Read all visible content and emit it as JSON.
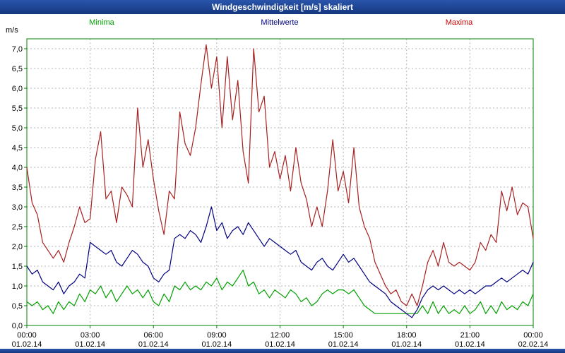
{
  "title": "Windgeschwindigkeit [m/s] skaliert",
  "legend": {
    "minima": "Minima",
    "mittelwerte": "Mittelwerte",
    "maxima": "Maxima"
  },
  "colors": {
    "title_bar": "#1c3e8f",
    "frame": "#008000",
    "grid": "#b4b4b4",
    "minima": "#00a000",
    "mittelwerte": "#000080",
    "maxima": "#a82020"
  },
  "chart_data": {
    "type": "line",
    "title": "Windgeschwindigkeit [m/s] skaliert",
    "xlabel": "",
    "ylabel": "m/s",
    "ylim": [
      0,
      7.25
    ],
    "y_tick_step": 0.5,
    "y_tick_labels": [
      "0,0",
      "0,5",
      "1,0",
      "1,5",
      "2,0",
      "2,5",
      "3,0",
      "3,5",
      "4,0",
      "4,5",
      "5,0",
      "5,5",
      "6,0",
      "6,5",
      "7,0"
    ],
    "x_start_hours": 0,
    "x_step_hours": 0.25,
    "x_ticks": [
      {
        "t": 0,
        "time": "00:00",
        "date": "01.02.14"
      },
      {
        "t": 3,
        "time": "03:00",
        "date": "01.02.14"
      },
      {
        "t": 6,
        "time": "06:00",
        "date": "01.02.14"
      },
      {
        "t": 9,
        "time": "09:00",
        "date": "01.02.14"
      },
      {
        "t": 12,
        "time": "12:00",
        "date": "01.02.14"
      },
      {
        "t": 15,
        "time": "15:00",
        "date": "01.02.14"
      },
      {
        "t": 18,
        "time": "18:00",
        "date": "01.02.14"
      },
      {
        "t": 21,
        "time": "21:00",
        "date": "01.02.14"
      },
      {
        "t": 24,
        "time": "00:00",
        "date": "02.02.14"
      }
    ],
    "grid": true,
    "legend_position": "top",
    "series": [
      {
        "name": "Minima",
        "color": "#00a000",
        "values": [
          0.6,
          0.5,
          0.6,
          0.4,
          0.5,
          0.3,
          0.6,
          0.4,
          0.6,
          0.5,
          0.8,
          0.6,
          0.9,
          0.8,
          1.0,
          0.7,
          0.9,
          0.6,
          0.8,
          1.0,
          0.8,
          0.9,
          0.7,
          0.9,
          0.6,
          0.5,
          0.8,
          0.6,
          1.0,
          0.9,
          1.1,
          0.9,
          1.0,
          0.9,
          1.1,
          1.0,
          1.2,
          0.9,
          1.1,
          1.0,
          1.2,
          1.4,
          1.0,
          1.1,
          0.8,
          0.9,
          0.7,
          0.9,
          0.8,
          0.7,
          0.9,
          0.8,
          0.6,
          0.7,
          0.5,
          0.6,
          0.8,
          0.9,
          0.8,
          0.9,
          0.9,
          0.8,
          0.9,
          0.7,
          0.5,
          0.4,
          0.3,
          0.3,
          0.3,
          0.3,
          0.3,
          0.3,
          0.3,
          0.3,
          0.3,
          0.5,
          0.3,
          0.6,
          0.3,
          0.5,
          0.3,
          0.4,
          0.3,
          0.5,
          0.3,
          0.4,
          0.6,
          0.3,
          0.5,
          0.3,
          0.6,
          0.4,
          0.5,
          0.4,
          0.6,
          0.5,
          0.8
        ]
      },
      {
        "name": "Mittelwerte",
        "color": "#000080",
        "values": [
          1.5,
          1.3,
          1.4,
          1.1,
          1.0,
          0.9,
          1.1,
          0.8,
          1.0,
          1.1,
          1.3,
          1.2,
          2.1,
          2.0,
          1.9,
          1.8,
          1.9,
          1.6,
          1.5,
          1.7,
          1.9,
          1.8,
          1.6,
          1.5,
          1.2,
          1.1,
          1.3,
          1.4,
          2.2,
          2.3,
          2.2,
          2.4,
          2.3,
          2.1,
          2.5,
          3.0,
          2.4,
          2.6,
          2.2,
          2.4,
          2.5,
          2.3,
          2.6,
          2.4,
          2.2,
          2.0,
          2.2,
          2.1,
          2.0,
          1.9,
          1.8,
          1.9,
          1.6,
          1.5,
          1.4,
          1.6,
          1.7,
          1.5,
          1.4,
          1.6,
          1.8,
          1.6,
          1.7,
          1.5,
          1.3,
          1.1,
          1.0,
          0.9,
          0.8,
          0.6,
          0.5,
          0.4,
          0.3,
          0.2,
          0.4,
          0.7,
          0.9,
          1.0,
          0.9,
          1.0,
          0.9,
          0.8,
          0.9,
          0.8,
          0.9,
          0.8,
          0.9,
          1.0,
          1.0,
          1.1,
          1.2,
          1.1,
          1.2,
          1.3,
          1.4,
          1.3,
          1.6
        ]
      },
      {
        "name": "Maxima",
        "color": "#a82020",
        "values": [
          4.0,
          3.1,
          2.8,
          2.1,
          1.9,
          1.7,
          1.9,
          1.6,
          2.1,
          2.5,
          3.0,
          2.6,
          2.7,
          4.2,
          4.9,
          3.2,
          3.4,
          2.6,
          3.5,
          3.3,
          3.0,
          5.5,
          4.0,
          4.7,
          3.7,
          2.9,
          2.3,
          3.4,
          3.2,
          5.4,
          4.6,
          4.3,
          5.0,
          6.1,
          7.1,
          6.0,
          6.8,
          5.0,
          6.8,
          5.2,
          6.2,
          4.4,
          3.6,
          7.0,
          5.4,
          5.8,
          4.0,
          4.4,
          3.7,
          4.3,
          3.4,
          4.5,
          3.6,
          3.2,
          2.5,
          3.0,
          2.5,
          3.4,
          4.7,
          3.4,
          3.9,
          3.1,
          4.5,
          3.0,
          2.5,
          2.2,
          1.6,
          1.3,
          1.0,
          0.8,
          0.9,
          0.6,
          0.5,
          0.8,
          0.5,
          1.0,
          1.6,
          1.9,
          1.5,
          2.1,
          1.6,
          1.5,
          1.6,
          1.5,
          1.4,
          1.6,
          2.1,
          1.9,
          2.3,
          2.1,
          3.4,
          2.9,
          3.5,
          2.8,
          3.1,
          3.0,
          2.2
        ]
      }
    ]
  }
}
